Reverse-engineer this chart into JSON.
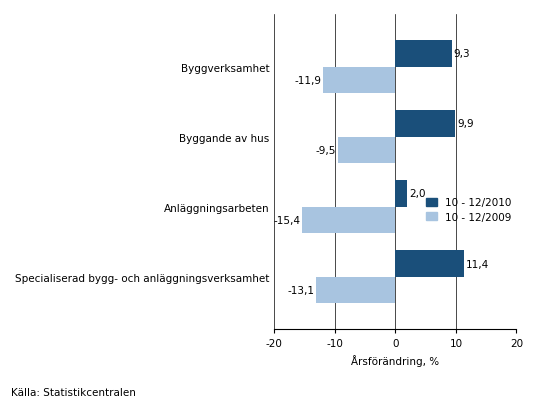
{
  "categories": [
    "Byggverksamhet",
    "Byggande av hus",
    "Anläggningsarbeten",
    "Specialiserad bygg- och anläggningsverksamhet"
  ],
  "values_2010": [
    9.3,
    9.9,
    2.0,
    11.4
  ],
  "values_2009": [
    -11.9,
    -9.5,
    -15.4,
    -13.1
  ],
  "color_2010": "#1A4F7A",
  "color_2009": "#A8C4E0",
  "legend_2010": "10 - 12/2010",
  "legend_2009": "10 - 12/2009",
  "xlabel": "Årsförändring, %",
  "xlim": [
    -20,
    20
  ],
  "xticks": [
    -20,
    -10,
    0,
    10,
    20
  ],
  "footnote": "Källa: Statistikcentralen",
  "bar_height": 0.38,
  "figsize": [
    5.38,
    4.02
  ],
  "dpi": 100,
  "background_color": "#FFFFFF",
  "grid_color": "#000000",
  "label_fontsize": 7.5,
  "tick_fontsize": 7.5,
  "legend_fontsize": 7.5,
  "footnote_fontsize": 7.5
}
